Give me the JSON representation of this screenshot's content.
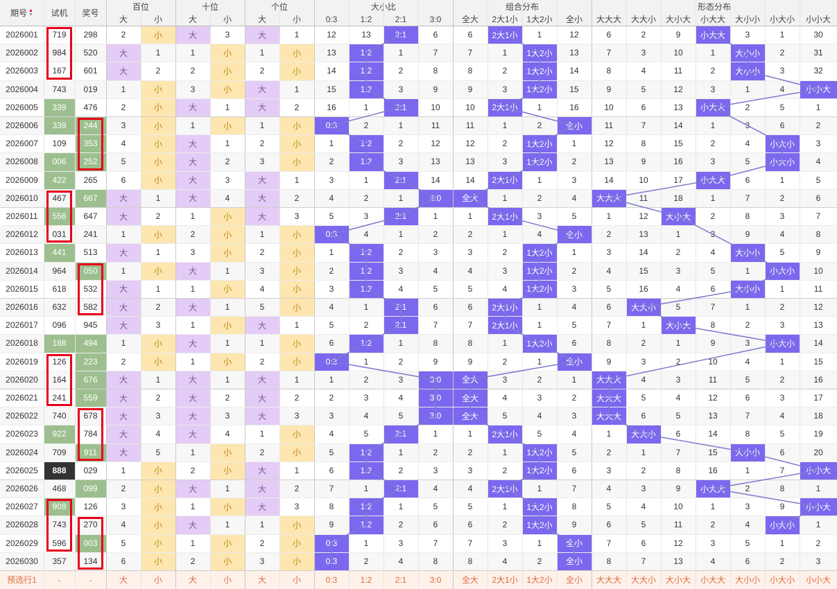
{
  "header": {
    "period": "期号",
    "sort_icon": "sort-icon",
    "test": "试机",
    "prize": "奖号",
    "groups": [
      "百位",
      "十位",
      "个位",
      "大小比",
      "组合分布",
      "形态分布"
    ],
    "sub_bs": [
      "大",
      "小"
    ],
    "sub_ratio": [
      "0:3",
      "1:2",
      "2:1",
      "3:0"
    ],
    "sub_combo": [
      "全大",
      "2大1小",
      "1大2小",
      "全小"
    ],
    "sub_form": [
      "大大大",
      "大大小",
      "大小大",
      "小大大",
      "大小小",
      "小大小",
      "小小大"
    ]
  },
  "rows": [
    {
      "p": "2026001",
      "t": "719",
      "a": "298",
      "bai": [
        2,
        "小"
      ],
      "shi": [
        "大",
        3
      ],
      "ge": [
        "大",
        1
      ],
      "ratio": [
        12,
        13,
        "2:1",
        6
      ],
      "combo": [
        6,
        "2大1小",
        1,
        12
      ],
      "form": [
        6,
        2,
        9,
        "小大大",
        3,
        1,
        30
      ]
    },
    {
      "p": "2026002",
      "t": "984",
      "a": "520",
      "bai": [
        "大",
        1
      ],
      "shi": [
        1,
        "小"
      ],
      "ge": [
        1,
        "小"
      ],
      "ratio": [
        13,
        "1:2",
        1,
        7
      ],
      "combo": [
        7,
        1,
        "1大2小",
        13
      ],
      "form": [
        7,
        3,
        10,
        1,
        "大小小",
        2,
        31
      ]
    },
    {
      "p": "2026003",
      "t": "167",
      "a": "601",
      "bai": [
        "大",
        2
      ],
      "shi": [
        2,
        "小"
      ],
      "ge": [
        2,
        "小"
      ],
      "ratio": [
        14,
        "1:2",
        2,
        8
      ],
      "combo": [
        8,
        2,
        "1大2小",
        14
      ],
      "form": [
        8,
        4,
        11,
        2,
        "大小小",
        3,
        32
      ]
    },
    {
      "p": "2026004",
      "t": "743",
      "a": "019",
      "bai": [
        1,
        "小"
      ],
      "shi": [
        3,
        "小"
      ],
      "ge": [
        "大",
        1
      ],
      "ratio": [
        15,
        "1:2",
        3,
        9
      ],
      "combo": [
        9,
        3,
        "1大2小",
        15
      ],
      "form": [
        9,
        5,
        12,
        3,
        1,
        4,
        "小小大"
      ]
    },
    {
      "p": "2026005",
      "t": "339",
      "a": "476",
      "bai": [
        2,
        "小"
      ],
      "shi": [
        "大",
        1
      ],
      "ge": [
        "大",
        2
      ],
      "ratio": [
        16,
        1,
        "2:1",
        10
      ],
      "combo": [
        10,
        "2大1小",
        1,
        16
      ],
      "form": [
        10,
        6,
        13,
        "小大大",
        2,
        5,
        1
      ]
    },
    {
      "p": "2026006",
      "t": "339",
      "a": "244",
      "bai": [
        3,
        "小"
      ],
      "shi": [
        1,
        "小"
      ],
      "ge": [
        1,
        "小"
      ],
      "ratio": [
        "0:3",
        2,
        1,
        11
      ],
      "combo": [
        11,
        1,
        2,
        "全小"
      ],
      "form": [
        11,
        7,
        14,
        1,
        3,
        6,
        2
      ]
    },
    {
      "p": "2026007",
      "t": "109",
      "a": "353",
      "bai": [
        4,
        "小"
      ],
      "shi": [
        "大",
        1
      ],
      "ge": [
        2,
        "小"
      ],
      "ratio": [
        1,
        "1:2",
        2,
        12
      ],
      "combo": [
        12,
        2,
        "1大2小",
        1
      ],
      "form": [
        12,
        8,
        15,
        2,
        4,
        "小大小",
        3
      ]
    },
    {
      "p": "2026008",
      "t": "006",
      "a": "252",
      "bai": [
        5,
        "小"
      ],
      "shi": [
        "大",
        2
      ],
      "ge": [
        3,
        "小"
      ],
      "ratio": [
        2,
        "1:2",
        3,
        13
      ],
      "combo": [
        13,
        3,
        "1大2小",
        2
      ],
      "form": [
        13,
        9,
        16,
        3,
        5,
        "小大小",
        4
      ]
    },
    {
      "p": "2026009",
      "t": "422",
      "a": "265",
      "bai": [
        6,
        "小"
      ],
      "shi": [
        "大",
        3
      ],
      "ge": [
        "大",
        1
      ],
      "ratio": [
        3,
        1,
        "2:1",
        14
      ],
      "combo": [
        14,
        "2大1小",
        1,
        3
      ],
      "form": [
        14,
        10,
        17,
        "小大大",
        6,
        1,
        5
      ]
    },
    {
      "p": "2026010",
      "t": "467",
      "a": "667",
      "bai": [
        "大",
        1
      ],
      "shi": [
        "大",
        4
      ],
      "ge": [
        "大",
        2
      ],
      "ratio": [
        4,
        2,
        1,
        "3:0"
      ],
      "combo": [
        "全大",
        1,
        2,
        4
      ],
      "form": [
        "大大大",
        11,
        18,
        1,
        7,
        2,
        6
      ]
    },
    {
      "p": "2026011",
      "t": "556",
      "a": "647",
      "bai": [
        "大",
        2
      ],
      "shi": [
        1,
        "小"
      ],
      "ge": [
        "大",
        3
      ],
      "ratio": [
        5,
        3,
        "2:1",
        1
      ],
      "combo": [
        1,
        "2大1小",
        3,
        5
      ],
      "form": [
        1,
        12,
        "大小大",
        2,
        8,
        3,
        7
      ]
    },
    {
      "p": "2026012",
      "t": "031",
      "a": "241",
      "bai": [
        1,
        "小"
      ],
      "shi": [
        2,
        "小"
      ],
      "ge": [
        1,
        "小"
      ],
      "ratio": [
        "0:3",
        4,
        1,
        2
      ],
      "combo": [
        2,
        1,
        4,
        "全小"
      ],
      "form": [
        2,
        13,
        1,
        3,
        9,
        4,
        8
      ]
    },
    {
      "p": "2026013",
      "t": "441",
      "a": "513",
      "bai": [
        "大",
        1
      ],
      "shi": [
        3,
        "小"
      ],
      "ge": [
        2,
        "小"
      ],
      "ratio": [
        1,
        "1:2",
        2,
        3
      ],
      "combo": [
        3,
        2,
        "1大2小",
        1
      ],
      "form": [
        3,
        14,
        2,
        4,
        "大小小",
        5,
        9
      ]
    },
    {
      "p": "2026014",
      "t": "964",
      "a": "050",
      "bai": [
        1,
        "小"
      ],
      "shi": [
        "大",
        1
      ],
      "ge": [
        3,
        "小"
      ],
      "ratio": [
        2,
        "1:2",
        3,
        4
      ],
      "combo": [
        4,
        3,
        "1大2小",
        2
      ],
      "form": [
        4,
        15,
        3,
        5,
        1,
        "小大小",
        10
      ]
    },
    {
      "p": "2026015",
      "t": "618",
      "a": "532",
      "bai": [
        "大",
        1
      ],
      "shi": [
        1,
        "小"
      ],
      "ge": [
        4,
        "小"
      ],
      "ratio": [
        3,
        "1:2",
        4,
        5
      ],
      "combo": [
        5,
        4,
        "1大2小",
        3
      ],
      "form": [
        5,
        16,
        4,
        6,
        "大小小",
        1,
        11
      ]
    },
    {
      "p": "2026016",
      "t": "632",
      "a": "582",
      "bai": [
        "大",
        2
      ],
      "shi": [
        "大",
        1
      ],
      "ge": [
        5,
        "小"
      ],
      "ratio": [
        4,
        1,
        "2:1",
        6
      ],
      "combo": [
        6,
        "2大1小",
        1,
        4
      ],
      "form": [
        6,
        "大大小",
        5,
        7,
        1,
        2,
        12
      ]
    },
    {
      "p": "2026017",
      "t": "096",
      "a": "945",
      "bai": [
        "大",
        3
      ],
      "shi": [
        1,
        "小"
      ],
      "ge": [
        "大",
        1
      ],
      "ratio": [
        5,
        2,
        "2:1",
        7
      ],
      "combo": [
        7,
        "2大1小",
        1,
        5
      ],
      "form": [
        7,
        1,
        "大小大",
        8,
        2,
        3,
        13
      ]
    },
    {
      "p": "2026018",
      "t": "188",
      "a": "494",
      "bai": [
        1,
        "小"
      ],
      "shi": [
        "大",
        1
      ],
      "ge": [
        1,
        "小"
      ],
      "ratio": [
        6,
        "1:2",
        1,
        8
      ],
      "combo": [
        8,
        1,
        "1大2小",
        6
      ],
      "form": [
        8,
        2,
        1,
        9,
        3,
        "小大小",
        14
      ]
    },
    {
      "p": "2026019",
      "t": "126",
      "a": "223",
      "bai": [
        2,
        "小"
      ],
      "shi": [
        1,
        "小"
      ],
      "ge": [
        2,
        "小"
      ],
      "ratio": [
        "0:3",
        1,
        2,
        9
      ],
      "combo": [
        9,
        2,
        1,
        "全小"
      ],
      "form": [
        9,
        3,
        2,
        10,
        4,
        1,
        15
      ]
    },
    {
      "p": "2026020",
      "t": "164",
      "a": "676",
      "bai": [
        "大",
        1
      ],
      "shi": [
        "大",
        1
      ],
      "ge": [
        "大",
        1
      ],
      "ratio": [
        1,
        2,
        3,
        "3:0"
      ],
      "combo": [
        "全大",
        3,
        2,
        1
      ],
      "form": [
        "大大大",
        4,
        3,
        11,
        5,
        2,
        16
      ]
    },
    {
      "p": "2026021",
      "t": "241",
      "a": "559",
      "bai": [
        "大",
        2
      ],
      "shi": [
        "大",
        2
      ],
      "ge": [
        "大",
        2
      ],
      "ratio": [
        2,
        3,
        4,
        "3:0"
      ],
      "combo": [
        "全大",
        4,
        3,
        2
      ],
      "form": [
        "大大大",
        5,
        4,
        12,
        6,
        3,
        17
      ]
    },
    {
      "p": "2026022",
      "t": "740",
      "a": "678",
      "bai": [
        "大",
        3
      ],
      "shi": [
        "大",
        3
      ],
      "ge": [
        "大",
        3
      ],
      "ratio": [
        3,
        4,
        5,
        "3:0"
      ],
      "combo": [
        "全大",
        5,
        4,
        3
      ],
      "form": [
        "大大大",
        6,
        5,
        13,
        7,
        4,
        18
      ]
    },
    {
      "p": "2026023",
      "t": "922",
      "a": "784",
      "bai": [
        "大",
        4
      ],
      "shi": [
        "大",
        4
      ],
      "ge": [
        1,
        "小"
      ],
      "ratio": [
        4,
        5,
        "2:1",
        1
      ],
      "combo": [
        1,
        "2大1小",
        5,
        4
      ],
      "form": [
        1,
        "大大小",
        6,
        14,
        8,
        5,
        19
      ]
    },
    {
      "p": "2026024",
      "t": "709",
      "a": "911",
      "bai": [
        "大",
        5
      ],
      "shi": [
        1,
        "小"
      ],
      "ge": [
        2,
        "小"
      ],
      "ratio": [
        5,
        "1:2",
        1,
        2
      ],
      "combo": [
        2,
        1,
        "1大2小",
        5
      ],
      "form": [
        2,
        1,
        7,
        15,
        "大小小",
        6,
        20
      ]
    },
    {
      "p": "2026025",
      "t": "888",
      "a": "029",
      "bai": [
        1,
        "小"
      ],
      "shi": [
        2,
        "小"
      ],
      "ge": [
        "大",
        1
      ],
      "ratio": [
        6,
        "1:2",
        2,
        3
      ],
      "combo": [
        3,
        2,
        "1大2小",
        6
      ],
      "form": [
        3,
        2,
        8,
        16,
        1,
        7,
        "小小大"
      ]
    },
    {
      "p": "2026026",
      "t": "468",
      "a": "099",
      "bai": [
        2,
        "小"
      ],
      "shi": [
        "大",
        1
      ],
      "ge": [
        "大",
        2
      ],
      "ratio": [
        7,
        1,
        "2:1",
        4
      ],
      "combo": [
        4,
        "2大1小",
        1,
        7
      ],
      "form": [
        4,
        3,
        9,
        "小大大",
        2,
        8,
        1
      ]
    },
    {
      "p": "2026027",
      "t": "909",
      "a": "126",
      "bai": [
        3,
        "小"
      ],
      "shi": [
        1,
        "小"
      ],
      "ge": [
        "大",
        3
      ],
      "ratio": [
        8,
        "1:2",
        1,
        5
      ],
      "combo": [
        5,
        1,
        "1大2小",
        8
      ],
      "form": [
        5,
        4,
        10,
        1,
        3,
        9,
        "小小大"
      ]
    },
    {
      "p": "2026028",
      "t": "743",
      "a": "270",
      "bai": [
        4,
        "小"
      ],
      "shi": [
        "大",
        1
      ],
      "ge": [
        1,
        "小"
      ],
      "ratio": [
        9,
        "1:2",
        2,
        6
      ],
      "combo": [
        6,
        2,
        "1大2小",
        9
      ],
      "form": [
        6,
        5,
        11,
        2,
        4,
        "小大小",
        1
      ]
    },
    {
      "p": "2026029",
      "t": "596",
      "a": "003",
      "bai": [
        5,
        "小"
      ],
      "shi": [
        1,
        "小"
      ],
      "ge": [
        2,
        "小"
      ],
      "ratio": [
        "0:3",
        1,
        3,
        7
      ],
      "combo": [
        7,
        3,
        1,
        "全小"
      ],
      "form": [
        7,
        6,
        12,
        3,
        5,
        1,
        2
      ]
    },
    {
      "p": "2026030",
      "t": "357",
      "a": "134",
      "bai": [
        6,
        "小"
      ],
      "shi": [
        2,
        "小"
      ],
      "ge": [
        3,
        "小"
      ],
      "ratio": [
        "0:3",
        2,
        4,
        8
      ],
      "combo": [
        8,
        4,
        2,
        "全小"
      ],
      "form": [
        8,
        7,
        13,
        4,
        6,
        2,
        3
      ]
    }
  ],
  "testhl": [
    "",
    "",
    "",
    "",
    "g",
    "g",
    "",
    "g",
    "g",
    "",
    "g",
    "",
    "g",
    "",
    "",
    "",
    "",
    "g",
    "",
    "",
    "",
    "",
    "g",
    "",
    "b",
    "",
    "g",
    "",
    "",
    ""
  ],
  "awardhl": [
    "",
    "",
    "",
    "",
    "",
    "g",
    "g",
    "g",
    "",
    "g",
    "",
    "",
    "",
    "g",
    "",
    "",
    "",
    "g",
    "g",
    "g",
    "g",
    "",
    "",
    "g",
    "",
    "g",
    "",
    "",
    "g",
    ""
  ],
  "footer": {
    "label": "预选行1",
    "t": "-",
    "a": "-",
    "cells": [
      "大",
      "小",
      "大",
      "小",
      "大",
      "小",
      "0:3",
      "1:2",
      "2:1",
      "3:0",
      "全大",
      "2大1小",
      "1大2小",
      "全小",
      "大大大",
      "大大小",
      "大小大",
      "小大大",
      "大小小",
      "小大小",
      "小小大"
    ]
  },
  "colors": {
    "line": "#7b7bcf",
    "red": "#e5001a",
    "hit": "#7b68ee"
  }
}
